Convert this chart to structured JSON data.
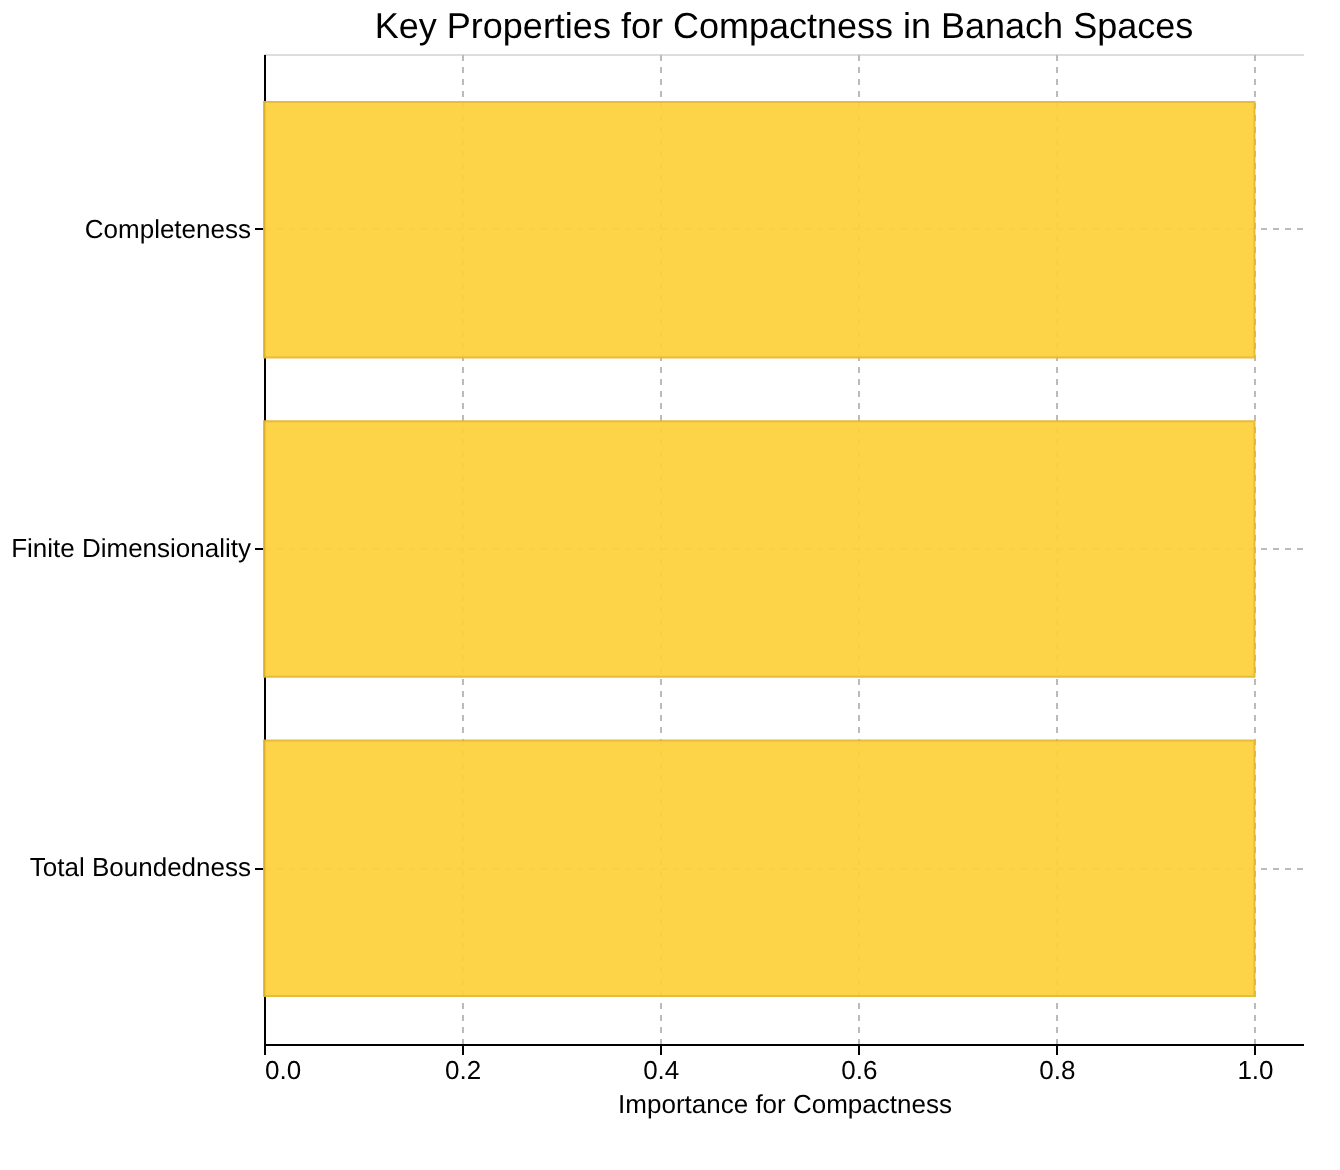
{
  "chart_data": {
    "type": "bar",
    "orientation": "horizontal",
    "title": "Key Properties for Compactness in Banach Spaces",
    "xlabel": "Importance for Compactness",
    "categories": [
      "Completeness",
      "Finite Dimensionality",
      "Total Boundedness"
    ],
    "values": [
      1.0,
      1.0,
      1.0
    ],
    "color": "#fdd13f",
    "xlim": [
      0,
      1.05
    ],
    "xticks": [
      {
        "value": 0,
        "label": "0.0"
      },
      0.2,
      0.4,
      0.6,
      0.8,
      {
        "value": 1,
        "label": "1.0"
      }
    ],
    "grid": true
  }
}
